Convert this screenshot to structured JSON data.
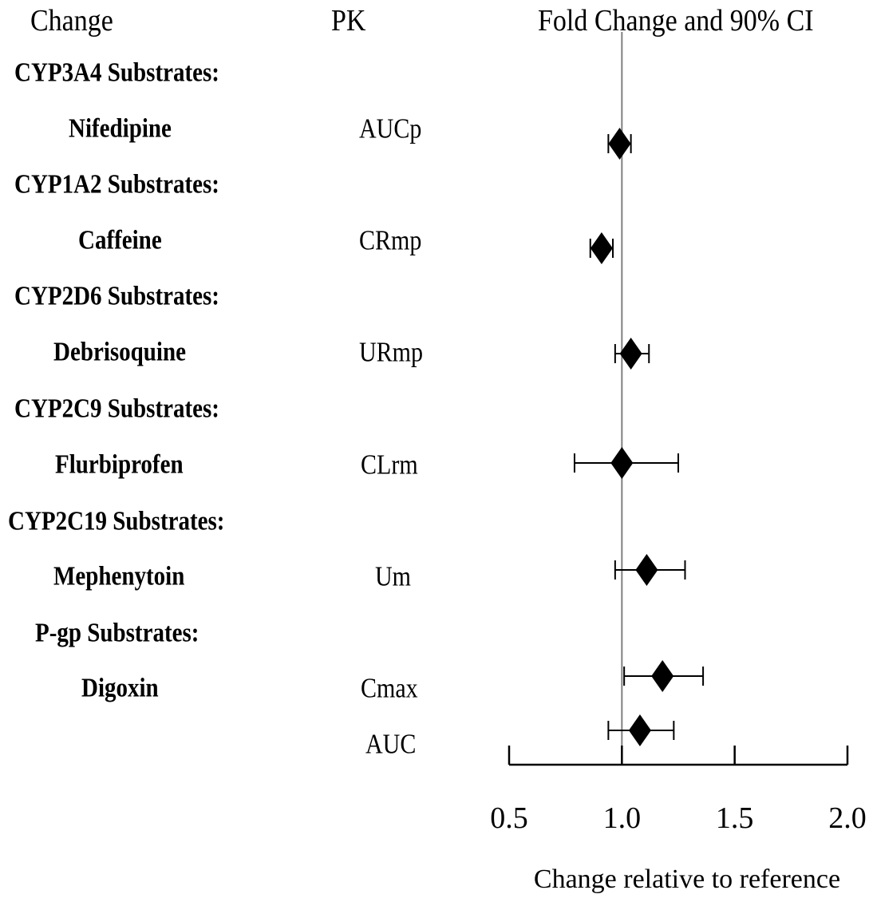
{
  "headers": {
    "change": "Change",
    "pk": "PK",
    "fold": "Fold Change and 90% CI"
  },
  "rows": [
    {
      "group": "CYP3A4 Substrates:",
      "drug": "Nifedipine",
      "pk": [
        "AUCp"
      ]
    },
    {
      "group": "CYP1A2 Substrates:",
      "drug": "Caffeine",
      "pk": [
        "CRmp"
      ]
    },
    {
      "group": "CYP2D6 Substrates:",
      "drug": "Debrisoquine",
      "pk": [
        "URmp"
      ]
    },
    {
      "group": "CYP2C9 Substrates:",
      "drug": "Flurbiprofen",
      "pk": [
        "CLrm"
      ]
    },
    {
      "group": "CYP2C19 Substrates:",
      "drug": "Mephenytoin",
      "pk": [
        "Um"
      ]
    },
    {
      "group": "P-gp Substrates:",
      "drug": "Digoxin",
      "pk": [
        "Cmax",
        "AUC"
      ]
    }
  ],
  "chart_data": {
    "type": "forest",
    "xlabel": "Change relative to reference",
    "xlim": [
      0.5,
      2.0
    ],
    "xticks": [
      0.5,
      1.0,
      1.5,
      2.0
    ],
    "xtick_labels": [
      "0.5",
      "1.0",
      "1.5",
      "2.0"
    ],
    "reference_line": 1.0,
    "points": [
      {
        "drug": "Nifedipine",
        "pk": "AUCp",
        "estimate": 0.99,
        "ci_low": 0.94,
        "ci_high": 1.04
      },
      {
        "drug": "Caffeine",
        "pk": "CRmp",
        "estimate": 0.91,
        "ci_low": 0.86,
        "ci_high": 0.96
      },
      {
        "drug": "Debrisoquine",
        "pk": "URmp",
        "estimate": 1.04,
        "ci_low": 0.97,
        "ci_high": 1.12
      },
      {
        "drug": "Flurbiprofen",
        "pk": "CLrm",
        "estimate": 1.0,
        "ci_low": 0.79,
        "ci_high": 1.25
      },
      {
        "drug": "Mephenytoin",
        "pk": "Um",
        "estimate": 1.11,
        "ci_low": 0.97,
        "ci_high": 1.28
      },
      {
        "drug": "Digoxin",
        "pk": "Cmax",
        "estimate": 1.18,
        "ci_low": 1.01,
        "ci_high": 1.36
      },
      {
        "drug": "Digoxin",
        "pk": "AUC",
        "estimate": 1.08,
        "ci_low": 0.94,
        "ci_high": 1.23
      }
    ]
  }
}
